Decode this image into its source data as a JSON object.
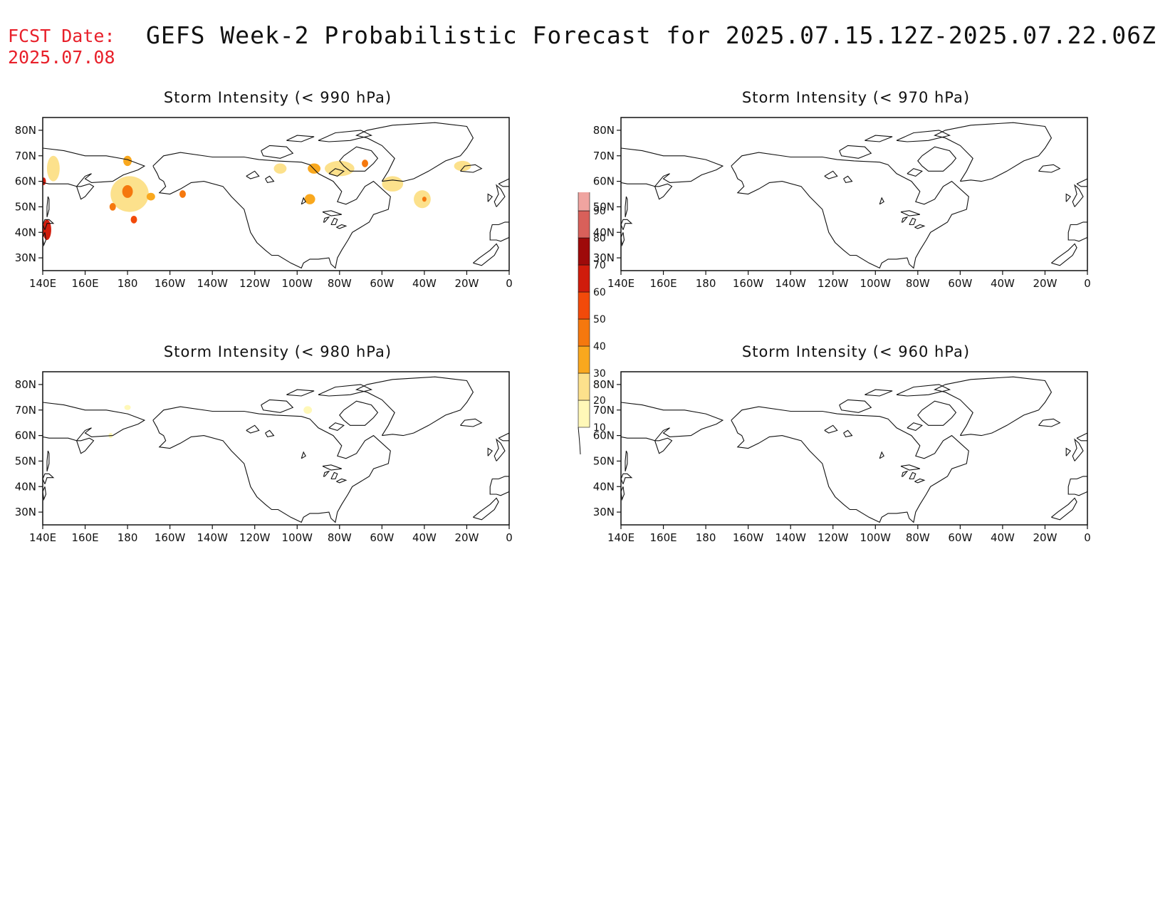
{
  "header": {
    "fcst_label": "FCST Date:",
    "fcst_date": "2025.07.08",
    "title": "GEFS Week-2 Probabilistic Forecast for 2025.07.15.12Z-2025.07.22.06Z"
  },
  "axes": {
    "lat_ticks": [
      "80N",
      "70N",
      "60N",
      "50N",
      "40N",
      "30N"
    ],
    "lon_ticks": [
      "140E",
      "160E",
      "180",
      "160W",
      "140W",
      "120W",
      "100W",
      "80W",
      "60W",
      "40W",
      "20W",
      "0"
    ],
    "lat_range": [
      25,
      85
    ],
    "lon_range_deg_east": [
      140,
      360
    ]
  },
  "colorbar": {
    "levels": [
      "10",
      "20",
      "30",
      "40",
      "50",
      "60",
      "70",
      "80",
      "90"
    ],
    "colors": [
      "#fff8b8",
      "#fce18c",
      "#f9a81e",
      "#f5780e",
      "#f24a0a",
      "#d01c0c",
      "#9e0a0a",
      "#d8605a",
      "#f0a4a0",
      "#fcdcdc"
    ]
  },
  "panels": [
    {
      "id": "p990",
      "title": "Storm Intensity (< 990 hPa)",
      "blobs": [
        {
          "lon": 181,
          "lat": 55,
          "level": 20,
          "rx": 9,
          "ry": 7
        },
        {
          "lon": 180,
          "lat": 56,
          "level": 40,
          "rx": 2.5,
          "ry": 2.5
        },
        {
          "lon": 183,
          "lat": 45,
          "level": 50,
          "rx": 1.5,
          "ry": 1.5
        },
        {
          "lon": 173,
          "lat": 50,
          "level": 40,
          "rx": 1.5,
          "ry": 1.5
        },
        {
          "lon": 191,
          "lat": 54,
          "level": 30,
          "rx": 2,
          "ry": 1.5
        },
        {
          "lon": 145,
          "lat": 65,
          "level": 20,
          "rx": 3,
          "ry": 5
        },
        {
          "lon": 142,
          "lat": 41,
          "level": 60,
          "rx": 2,
          "ry": 4
        },
        {
          "lon": 140.5,
          "lat": 60,
          "level": 60,
          "rx": 1,
          "ry": 1.5
        },
        {
          "lon": 180,
          "lat": 68,
          "level": 30,
          "rx": 2,
          "ry": 2
        },
        {
          "lon": 206,
          "lat": 55,
          "level": 40,
          "rx": 1.5,
          "ry": 1.5
        },
        {
          "lon": 268,
          "lat": 65,
          "level": 30,
          "rx": 3,
          "ry": 2
        },
        {
          "lon": 280,
          "lat": 65,
          "level": 20,
          "rx": 7,
          "ry": 3
        },
        {
          "lon": 266,
          "lat": 53,
          "level": 30,
          "rx": 2.5,
          "ry": 2
        },
        {
          "lon": 305,
          "lat": 59,
          "level": 20,
          "rx": 5,
          "ry": 3
        },
        {
          "lon": 319,
          "lat": 53,
          "level": 20,
          "rx": 4,
          "ry": 3.5
        },
        {
          "lon": 320,
          "lat": 53,
          "level": 40,
          "rx": 1,
          "ry": 1
        },
        {
          "lon": 338,
          "lat": 66,
          "level": 20,
          "rx": 4,
          "ry": 2
        },
        {
          "lon": 292,
          "lat": 67,
          "level": 40,
          "rx": 1.5,
          "ry": 1.5
        },
        {
          "lon": 252,
          "lat": 65,
          "level": 20,
          "rx": 3,
          "ry": 2
        }
      ]
    },
    {
      "id": "p970",
      "title": "Storm Intensity (< 970 hPa)",
      "blobs": []
    },
    {
      "id": "p980",
      "title": "Storm Intensity (< 980 hPa)",
      "blobs": [
        {
          "lon": 180,
          "lat": 71,
          "level": 10,
          "rx": 1.5,
          "ry": 1
        },
        {
          "lon": 265,
          "lat": 70,
          "level": 10,
          "rx": 2,
          "ry": 1.5
        },
        {
          "lon": 172,
          "lat": 60,
          "level": 10,
          "rx": 1,
          "ry": 1
        }
      ]
    },
    {
      "id": "p960",
      "title": "Storm Intensity (< 960 hPa)",
      "blobs": []
    }
  ]
}
